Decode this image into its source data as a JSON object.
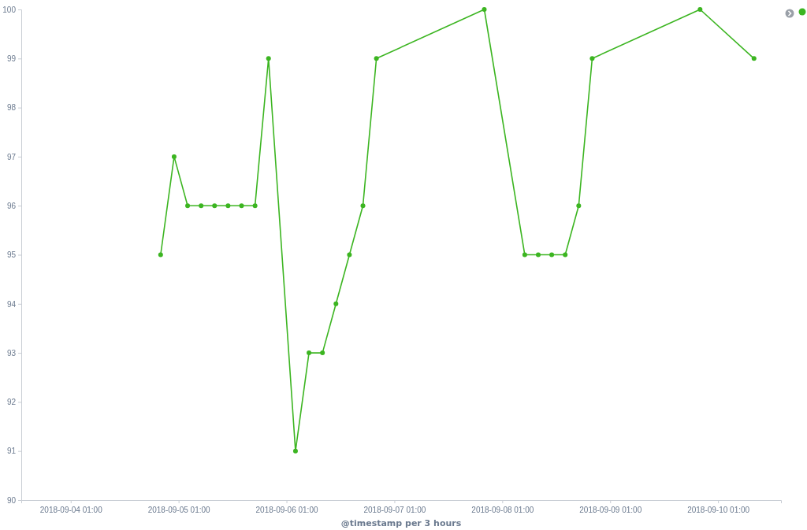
{
  "chart_data": {
    "type": "line",
    "xlabel": "@timestamp per 3 hours",
    "x": [
      "2018-09-04T21:00",
      "2018-09-05T00:00",
      "2018-09-05T03:00",
      "2018-09-05T06:00",
      "2018-09-05T09:00",
      "2018-09-05T12:00",
      "2018-09-05T15:00",
      "2018-09-05T18:00",
      "2018-09-05T21:00",
      "2018-09-06T03:00",
      "2018-09-06T06:00",
      "2018-09-06T09:00",
      "2018-09-06T12:00",
      "2018-09-06T15:00",
      "2018-09-06T18:00",
      "2018-09-06T21:00",
      "2018-09-07T21:00",
      "2018-09-08T06:00",
      "2018-09-08T09:00",
      "2018-09-08T12:00",
      "2018-09-08T15:00",
      "2018-09-08T18:00",
      "2018-09-08T21:00",
      "2018-09-09T21:00",
      "2018-09-10T09:00"
    ],
    "series": [
      {
        "color": "#3cb521",
        "values": [
          95,
          97,
          96,
          96,
          96,
          96,
          96,
          96,
          99,
          91,
          93,
          93,
          94,
          95,
          96,
          99,
          100,
          95,
          95,
          95,
          95,
          96,
          99,
          100,
          99
        ]
      }
    ],
    "xlim": [
      "2018-09-03T14:00",
      "2018-09-10T15:00"
    ],
    "xticks": [
      {
        "value": "2018-09-04T01:00",
        "label": "2018-09-04 01:00"
      },
      {
        "value": "2018-09-05T01:00",
        "label": "2018-09-05 01:00"
      },
      {
        "value": "2018-09-06T01:00",
        "label": "2018-09-06 01:00"
      },
      {
        "value": "2018-09-07T01:00",
        "label": "2018-09-07 01:00"
      },
      {
        "value": "2018-09-08T01:00",
        "label": "2018-09-08 01:00"
      },
      {
        "value": "2018-09-09T01:00",
        "label": "2018-09-09 01:00"
      },
      {
        "value": "2018-09-10T01:00",
        "label": "2018-09-10 01:00"
      }
    ],
    "ylim": [
      90,
      100
    ],
    "yticks": [
      90,
      91,
      92,
      93,
      94,
      95,
      96,
      97,
      98,
      99,
      100
    ],
    "marker": "circle",
    "line_style": "solid"
  }
}
